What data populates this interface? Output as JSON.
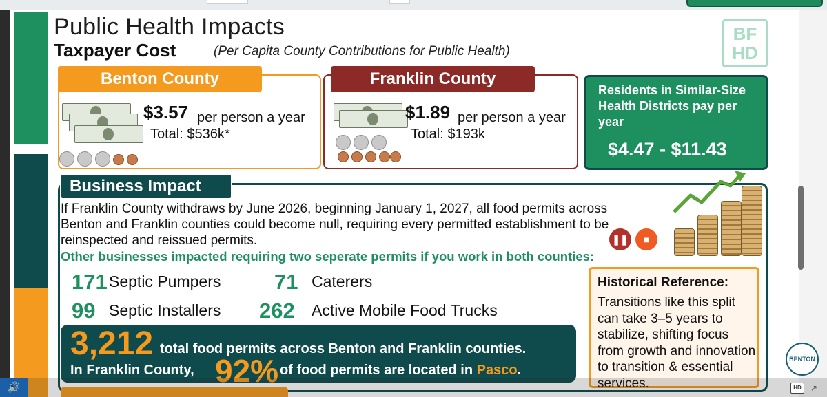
{
  "slide": {
    "title": "Public Health Impacts",
    "subtitle": "Taxpayer Cost",
    "subtitle_note": "(Per Capita County Contributions for Public Health)",
    "logo_text": "BF HD"
  },
  "benton": {
    "label": "Benton County",
    "price": "$3.57",
    "per": "per person a year",
    "total": "Total: $536k*"
  },
  "franklin": {
    "label": "Franklin County",
    "price": "$1.89",
    "per": "per person a year",
    "total": "Total: $193k"
  },
  "residents": {
    "label": "Residents in Similar-Size Health Districts pay per year",
    "range": "$4.47 - $11.43"
  },
  "business": {
    "label": "Business Impact",
    "text": "If Franklin County withdraws by June 2026, beginning January 1, 2027, all food permits across Benton and Franklin counties could become null, requiring every permitted establishment to be reinspected and reissued permits.",
    "other": "Other businesses impacted requiring two seperate permits if you work in both counties:",
    "stats": [
      {
        "num": "171",
        "label": "Septic Pumpers"
      },
      {
        "num": "71",
        "label": "Caterers"
      },
      {
        "num": "99",
        "label": "Septic Installers"
      },
      {
        "num": "262",
        "label": "Active Mobile Food Trucks"
      }
    ]
  },
  "permits": {
    "big_number": "3,212",
    "line1": "total food permits across Benton and Franklin counties.",
    "line2a": "In Franklin County,",
    "percent": "92%",
    "line2b": "of food permits are located in",
    "pasco": "Pasco",
    "period": "."
  },
  "history": {
    "title": "Historical Reference:",
    "text": "Transitions like this split can take 3–5 years to stabilize, shifting focus from growth and innovation to transition & essential services."
  },
  "controls": {
    "pause_icon": "pause-icon",
    "stop_icon": "stop-icon"
  },
  "seal_text": "BENTON"
}
